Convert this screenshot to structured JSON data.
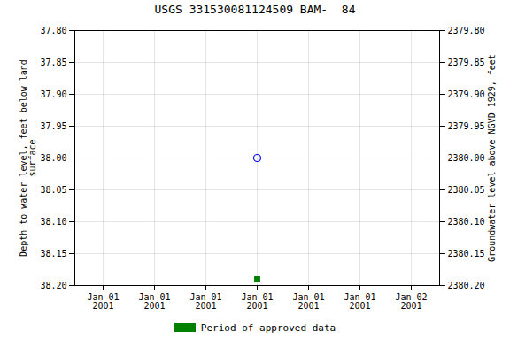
{
  "chart_data": {
    "type": "scatter",
    "title": "USGS 331530081124509 BAM-  84",
    "ylabel": "Depth to water level, feet below land\nsurface",
    "y2label": "Groundwater level above NGVD 1929, feet",
    "categories": [
      "Jan 01\n2001",
      "Jan 01\n2001",
      "Jan 01\n2001",
      "Jan 01\n2001",
      "Jan 01\n2001",
      "Jan 01\n2001",
      "Jan 02\n2001"
    ],
    "series": [
      {
        "name": "Period of approved data",
        "color": "#008000",
        "marker": "square",
        "values": [
          null,
          null,
          null,
          38.19,
          null,
          null,
          null
        ]
      },
      {
        "color": "blue",
        "marker": "circle_open",
        "values": [
          null,
          null,
          null,
          38.0,
          null,
          null,
          null
        ]
      }
    ],
    "ylim": [
      38.2,
      37.8
    ],
    "yticks": [
      {
        "value": 37.8,
        "label": "37.80"
      },
      {
        "value": 37.85,
        "label": "37.85"
      },
      {
        "value": 37.9,
        "label": "37.90"
      },
      {
        "value": 37.95,
        "label": "37.95"
      },
      {
        "value": 38.0,
        "label": "38.00"
      },
      {
        "value": 38.05,
        "label": "38.05"
      },
      {
        "value": 38.1,
        "label": "38.10"
      },
      {
        "value": 38.15,
        "label": "38.15"
      },
      {
        "value": 38.2,
        "label": "38.20"
      }
    ],
    "y2lim": [
      2380.2,
      2379.8
    ],
    "y2ticks": [
      {
        "value": 2379.8,
        "label": "2379.80"
      },
      {
        "value": 2379.85,
        "label": "2379.85"
      },
      {
        "value": 2379.9,
        "label": "2379.90"
      },
      {
        "value": 2379.95,
        "label": "2379.95"
      },
      {
        "value": 2380.0,
        "label": "2380.00"
      },
      {
        "value": 2380.05,
        "label": "2380.05"
      },
      {
        "value": 2380.1,
        "label": "2380.10"
      },
      {
        "value": 2380.15,
        "label": "2380.15"
      },
      {
        "value": 2380.2,
        "label": "2380.20"
      }
    ],
    "grid": true,
    "legend": "bottom"
  }
}
